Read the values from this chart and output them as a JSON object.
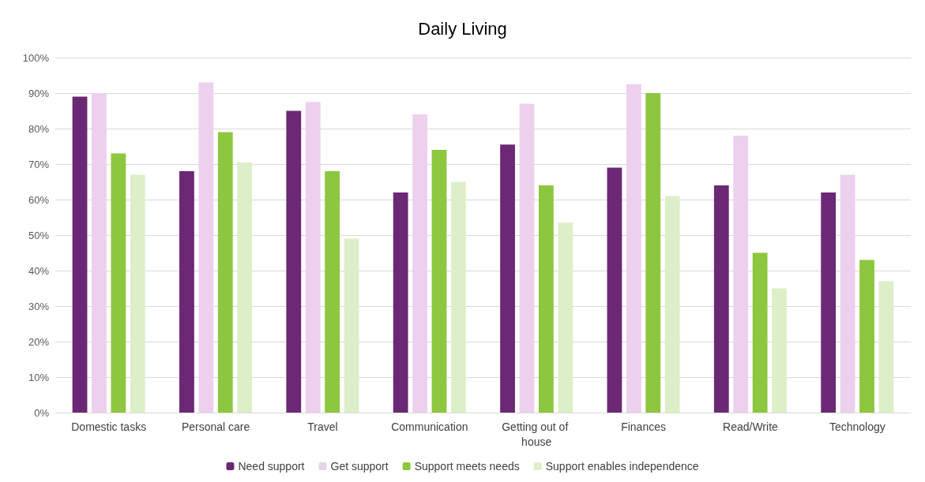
{
  "chart_data": {
    "type": "bar",
    "title": "Daily Living",
    "categories": [
      "Domestic tasks",
      "Personal care",
      "Travel",
      "Communication",
      "Getting out of house",
      "Finances",
      "Read/Write",
      "Technology"
    ],
    "series": [
      {
        "name": "Need support",
        "color": "#6b2874",
        "values": [
          89,
          68,
          85,
          62,
          75.5,
          69,
          64,
          62
        ]
      },
      {
        "name": "Get support",
        "color": "#ecd0ee",
        "values": [
          90,
          93,
          87.5,
          84,
          87,
          92.5,
          78,
          67
        ]
      },
      {
        "name": "Support meets needs",
        "color": "#8dc63f",
        "values": [
          73,
          79,
          68,
          74,
          64,
          90,
          45,
          43
        ]
      },
      {
        "name": "Support enables independence",
        "color": "#dcefc8",
        "values": [
          67,
          70.5,
          49,
          65,
          53.5,
          61,
          35,
          37
        ]
      }
    ],
    "ylim": [
      0,
      100
    ],
    "yticks": [
      {
        "value": 0,
        "label": "0%"
      },
      {
        "value": 10,
        "label": "10%"
      },
      {
        "value": 20,
        "label": "20%"
      },
      {
        "value": 30,
        "label": "30%"
      },
      {
        "value": 40,
        "label": "40%"
      },
      {
        "value": 50,
        "label": "50%"
      },
      {
        "value": 60,
        "label": "60%"
      },
      {
        "value": 70,
        "label": "70%"
      },
      {
        "value": 80,
        "label": "80%"
      },
      {
        "value": 90,
        "label": "90%"
      },
      {
        "value": 100,
        "label": "100%"
      }
    ],
    "grid": "y",
    "legend": "bottom"
  }
}
